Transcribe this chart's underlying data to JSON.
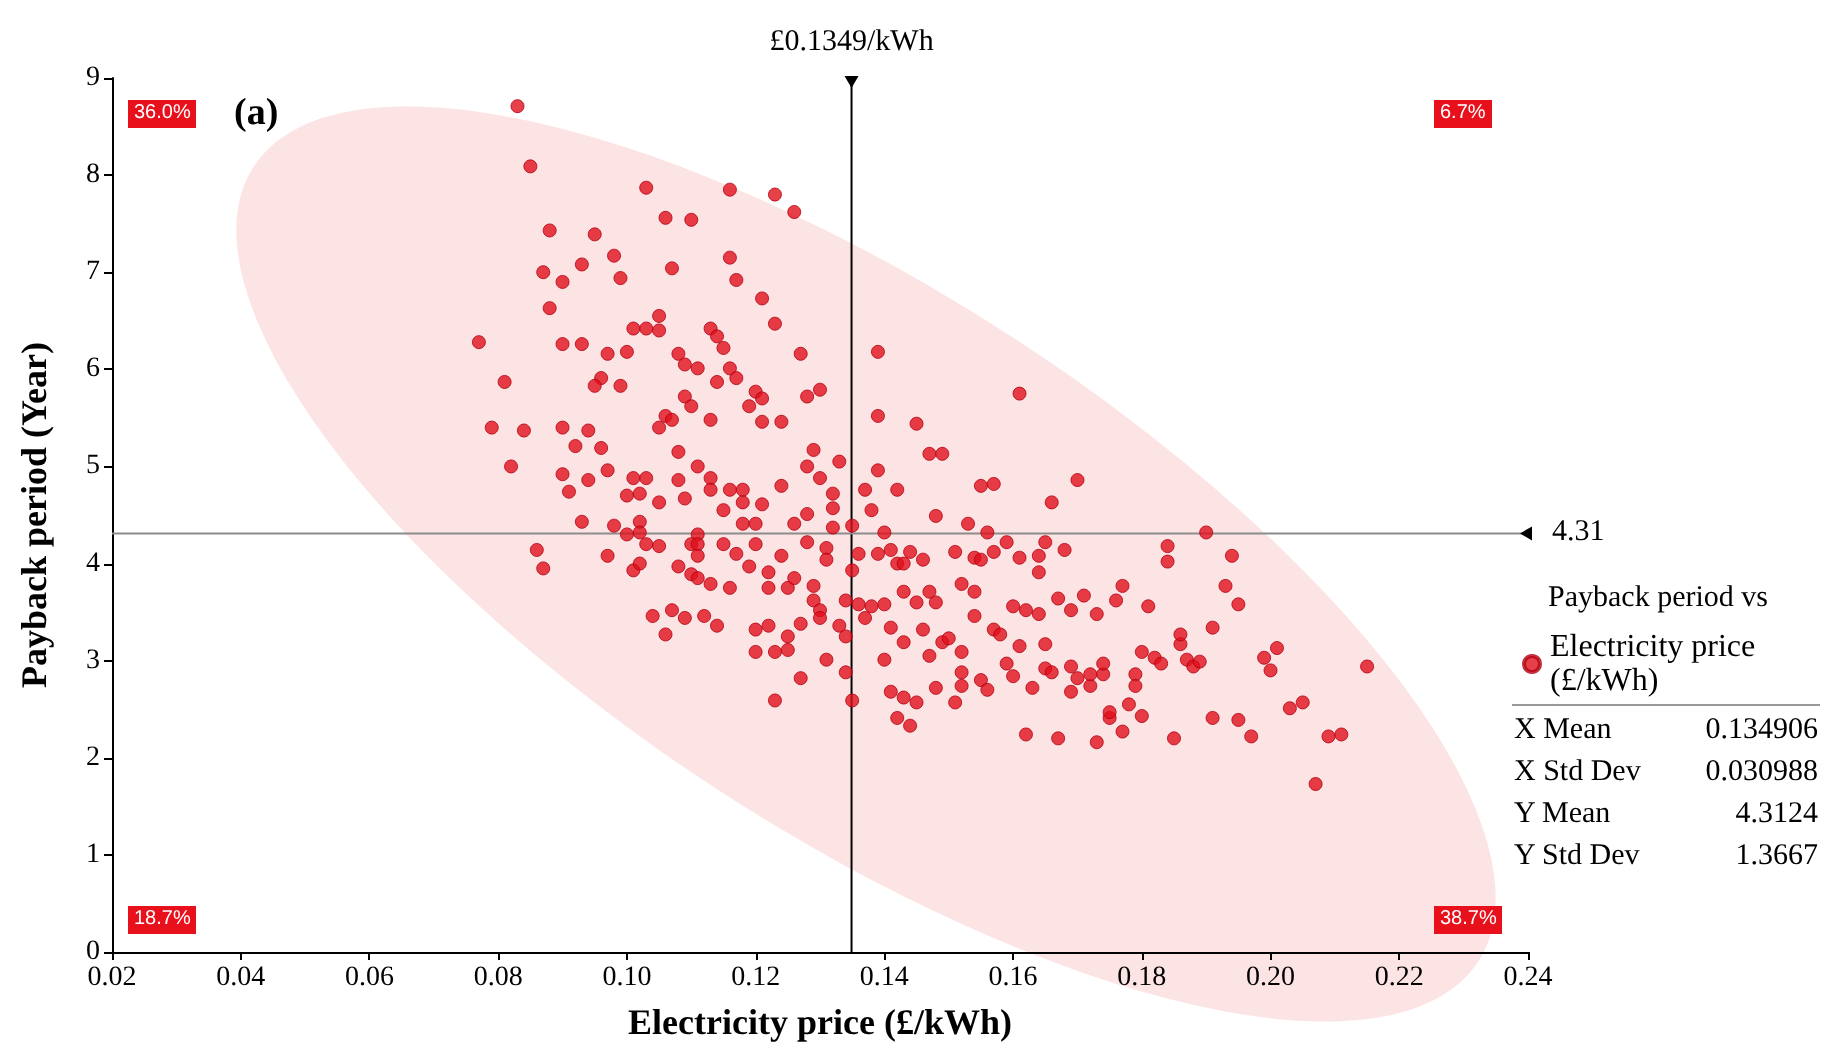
{
  "chart_data": {
    "type": "scatter",
    "xlabel": "Electricity price (£/kWh)",
    "ylabel": "Payback period (Year)",
    "legend_title": "Payback period vs",
    "legend": "right",
    "marker": "circle",
    "grid": false,
    "xlim": [
      0.02,
      0.24
    ],
    "xticks": [
      0.02,
      0.04,
      0.06,
      0.08,
      {
        "value": 0.1,
        "label": "0.10"
      },
      0.12,
      0.14,
      0.16,
      0.18,
      {
        "value": 0.2,
        "label": "0.20"
      },
      0.22,
      0.24
    ],
    "ylim": [
      0,
      9
    ],
    "yticks": [
      0,
      1,
      2,
      3,
      4,
      5,
      6,
      7,
      8,
      9
    ],
    "ref_lines": [
      {
        "axis": "x",
        "value": 0.1349,
        "label": "£0.1349/kWh",
        "color": "#000000"
      },
      {
        "axis": "y",
        "value": 4.31,
        "label": "4.31",
        "color": "#8c8c8c"
      }
    ],
    "annotations": [
      "(a)",
      "36.0%",
      "6.7%",
      "18.7%",
      "38.7%",
      "X Mean",
      "0.134906",
      "X Std Dev",
      "0.030988",
      "Y Mean",
      "4.3124",
      "Y Std Dev",
      "1.3667"
    ],
    "series": [
      {
        "name": "Electricity price (£/kWh)",
        "color": "#e0101c",
        "x": [
          0.083,
          0.085,
          0.088,
          0.095,
          0.087,
          0.09,
          0.088,
          0.093,
          0.098,
          0.099,
          0.103,
          0.106,
          0.11,
          0.116,
          0.123,
          0.126,
          0.116,
          0.117,
          0.107,
          0.121,
          0.123,
          0.077,
          0.105,
          0.101,
          0.103,
          0.105,
          0.113,
          0.114,
          0.115,
          0.09,
          0.093,
          0.097,
          0.1,
          0.108,
          0.109,
          0.111,
          0.116,
          0.127,
          0.096,
          0.095,
          0.099,
          0.114,
          0.117,
          0.12,
          0.121,
          0.128,
          0.13,
          0.081,
          0.109,
          0.11,
          0.119,
          0.106,
          0.107,
          0.105,
          0.113,
          0.121,
          0.124,
          0.079,
          0.084,
          0.09,
          0.094,
          0.092,
          0.096,
          0.108,
          0.129,
          0.082,
          0.09,
          0.094,
          0.097,
          0.101,
          0.103,
          0.108,
          0.111,
          0.113,
          0.128,
          0.13,
          0.133,
          0.139,
          0.139,
          0.139,
          0.091,
          0.1,
          0.102,
          0.105,
          0.109,
          0.113,
          0.116,
          0.118,
          0.118,
          0.121,
          0.124,
          0.128,
          0.132,
          0.132,
          0.137,
          0.138,
          0.093,
          0.098,
          0.1,
          0.102,
          0.102,
          0.111,
          0.115,
          0.118,
          0.12,
          0.126,
          0.132,
          0.135,
          0.086,
          0.087,
          0.097,
          0.101,
          0.102,
          0.103,
          0.105,
          0.11,
          0.111,
          0.111,
          0.108,
          0.11,
          0.111,
          0.113,
          0.115,
          0.117,
          0.12,
          0.119,
          0.122,
          0.124,
          0.128,
          0.131,
          0.131,
          0.136,
          0.135,
          0.116,
          0.122,
          0.125,
          0.126,
          0.129,
          0.129,
          0.13,
          0.13,
          0.134,
          0.136,
          0.138,
          0.137,
          0.104,
          0.107,
          0.109,
          0.112,
          0.114,
          0.12,
          0.122,
          0.127,
          0.125,
          0.133,
          0.134,
          0.106,
          0.12,
          0.123,
          0.125,
          0.131,
          0.127,
          0.134,
          0.123,
          0.135,
          0.145,
          0.147,
          0.149,
          0.161,
          0.142,
          0.148,
          0.155,
          0.157,
          0.166,
          0.17,
          0.153,
          0.14,
          0.156,
          0.19,
          0.139,
          0.141,
          0.142,
          0.144,
          0.143,
          0.146,
          0.151,
          0.154,
          0.155,
          0.157,
          0.159,
          0.161,
          0.164,
          0.165,
          0.168,
          0.164,
          0.184,
          0.184,
          0.194,
          0.193,
          0.195,
          0.14,
          0.143,
          0.145,
          0.147,
          0.148,
          0.152,
          0.154,
          0.16,
          0.162,
          0.164,
          0.167,
          0.169,
          0.171,
          0.173,
          0.176,
          0.177,
          0.181,
          0.141,
          0.14,
          0.143,
          0.146,
          0.147,
          0.149,
          0.15,
          0.152,
          0.154,
          0.157,
          0.158,
          0.161,
          0.165,
          0.152,
          0.159,
          0.16,
          0.165,
          0.166,
          0.169,
          0.17,
          0.172,
          0.172,
          0.174,
          0.174,
          0.179,
          0.179,
          0.18,
          0.182,
          0.183,
          0.186,
          0.186,
          0.187,
          0.188,
          0.189,
          0.191,
          0.141,
          0.143,
          0.145,
          0.148,
          0.151,
          0.152,
          0.155,
          0.156,
          0.163,
          0.169,
          0.142,
          0.144,
          0.175,
          0.175,
          0.178,
          0.18,
          0.162,
          0.167,
          0.173,
          0.177,
          0.185,
          0.191,
          0.195,
          0.199,
          0.201,
          0.2,
          0.215,
          0.197,
          0.203,
          0.205,
          0.209,
          0.211,
          0.207
        ],
        "values": [
          8.71,
          8.09,
          7.43,
          7.39,
          7.0,
          6.9,
          6.63,
          7.08,
          7.17,
          6.94,
          7.87,
          7.56,
          7.54,
          7.85,
          7.8,
          7.62,
          7.15,
          6.92,
          7.04,
          6.73,
          6.47,
          6.28,
          6.55,
          6.42,
          6.42,
          6.4,
          6.42,
          6.34,
          6.22,
          6.26,
          6.26,
          6.16,
          6.18,
          6.16,
          6.05,
          6.01,
          6.01,
          6.16,
          5.91,
          5.83,
          5.83,
          5.87,
          5.91,
          5.77,
          5.7,
          5.72,
          5.79,
          5.87,
          5.72,
          5.62,
          5.62,
          5.52,
          5.48,
          5.4,
          5.48,
          5.46,
          5.46,
          5.4,
          5.37,
          5.4,
          5.37,
          5.21,
          5.19,
          5.15,
          5.17,
          5.0,
          4.92,
          4.86,
          4.96,
          4.88,
          4.88,
          4.86,
          5.0,
          4.88,
          5.0,
          4.88,
          5.05,
          6.18,
          5.52,
          4.96,
          4.74,
          4.7,
          4.72,
          4.63,
          4.67,
          4.76,
          4.76,
          4.76,
          4.63,
          4.61,
          4.8,
          4.51,
          4.72,
          4.57,
          4.76,
          4.55,
          4.43,
          4.39,
          4.3,
          4.43,
          4.32,
          4.3,
          4.55,
          4.41,
          4.41,
          4.41,
          4.37,
          4.39,
          4.14,
          3.95,
          4.08,
          3.93,
          4.0,
          4.2,
          4.18,
          4.2,
          4.2,
          4.08,
          3.97,
          3.89,
          3.85,
          3.79,
          4.2,
          4.1,
          4.2,
          3.97,
          3.91,
          4.08,
          4.22,
          4.16,
          4.04,
          4.1,
          3.93,
          3.75,
          3.75,
          3.75,
          3.85,
          3.77,
          3.62,
          3.52,
          3.44,
          3.62,
          3.58,
          3.56,
          3.44,
          3.46,
          3.52,
          3.44,
          3.46,
          3.36,
          3.32,
          3.36,
          3.38,
          3.25,
          3.36,
          3.25,
          3.27,
          3.09,
          3.09,
          3.11,
          3.01,
          2.82,
          2.88,
          2.59,
          2.59,
          5.44,
          5.13,
          5.13,
          5.75,
          4.76,
          4.49,
          4.8,
          4.82,
          4.63,
          4.86,
          4.41,
          4.32,
          4.32,
          4.32,
          4.1,
          4.14,
          4.0,
          4.12,
          4.0,
          4.04,
          4.12,
          4.06,
          4.04,
          4.12,
          4.22,
          4.06,
          4.08,
          4.22,
          4.14,
          3.91,
          4.18,
          4.02,
          4.08,
          3.77,
          3.58,
          3.58,
          3.71,
          3.6,
          3.71,
          3.6,
          3.79,
          3.71,
          3.56,
          3.52,
          3.48,
          3.64,
          3.52,
          3.67,
          3.48,
          3.62,
          3.77,
          3.56,
          3.34,
          3.01,
          3.19,
          3.32,
          3.05,
          3.19,
          3.23,
          3.09,
          3.46,
          3.32,
          3.27,
          3.15,
          3.17,
          2.88,
          2.97,
          2.84,
          2.92,
          2.88,
          2.94,
          2.82,
          2.74,
          2.86,
          2.86,
          2.97,
          2.86,
          2.74,
          3.09,
          3.03,
          2.97,
          3.17,
          3.27,
          3.01,
          2.94,
          2.99,
          3.34,
          2.68,
          2.62,
          2.57,
          2.72,
          2.57,
          2.74,
          2.8,
          2.7,
          2.72,
          2.68,
          2.41,
          2.33,
          2.41,
          2.47,
          2.55,
          2.43,
          2.24,
          2.2,
          2.16,
          2.27,
          2.2,
          2.41,
          2.39,
          3.03,
          3.13,
          2.9,
          2.94,
          2.22,
          2.51,
          2.57,
          2.22,
          2.24,
          1.73
        ]
      }
    ]
  }
}
